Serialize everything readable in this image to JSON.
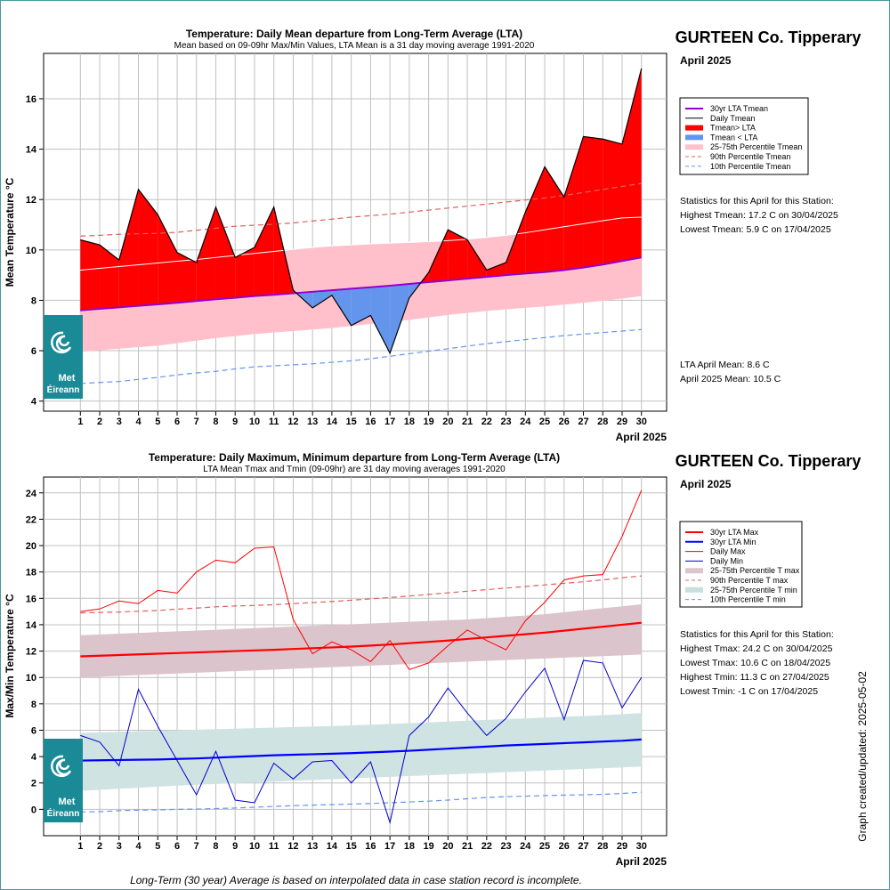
{
  "station": "GURTEEN Co. Tipperary",
  "month_label": "April 2025",
  "updated_text": "Graph created/updated:  2025-05-02",
  "footnote": "Long-Term (30 year) Average is based on interpolated data in case station record is incomplete.",
  "logo_text": [
    "Met",
    "Éireann"
  ],
  "colors": {
    "red_fill": "#ff0000",
    "blue_fill": "#6495ed",
    "pink_band": "#ffc0cb",
    "lta_purple": "#9400d3",
    "max_band": "#dcc4cc",
    "min_band": "#cfe3e2",
    "logo_bg": "#1a8a96"
  },
  "top": {
    "stats_heading": "Statistics for this April for this Station:",
    "stats": [
      "Highest Tmean: 17.2 C on 30/04/2025",
      "Lowest Tmean: 5.9 C on 17/04/2025"
    ],
    "means": [
      "LTA April Mean: 8.6 C",
      "April 2025 Mean: 10.5 C"
    ],
    "legend": [
      {
        "label": "30yr LTA Tmean",
        "style": "line",
        "color": "#9400d3",
        "width": 2,
        "dash": ""
      },
      {
        "label": "Daily Tmean",
        "style": "line",
        "color": "#000000",
        "width": 1,
        "dash": ""
      },
      {
        "label": "Tmean> LTA",
        "style": "line",
        "color": "#ff0000",
        "width": 6,
        "dash": ""
      },
      {
        "label": "Tmean < LTA",
        "style": "line",
        "color": "#6495ed",
        "width": 6,
        "dash": ""
      },
      {
        "label": "25-75th Percentile Tmean",
        "style": "line",
        "color": "#ffc0cb",
        "width": 6,
        "dash": ""
      },
      {
        "label": "90th Percentile Tmean",
        "style": "line",
        "color": "#e06060",
        "width": 1,
        "dash": "4,3"
      },
      {
        "label": "10th Percentile Tmean",
        "style": "line",
        "color": "#6495ed",
        "width": 1,
        "dash": "4,3"
      }
    ]
  },
  "bottom": {
    "stats_heading": "Statistics for this April for this Station:",
    "stats": [
      "Highest Tmax: 24.2 C on 30/04/2025",
      "Lowest Tmax: 10.6 C on 18/04/2025",
      "Highest Tmin: 11.3 C on 27/04/2025",
      "Lowest Tmin: -1 C on 17/04/2025"
    ],
    "legend": [
      {
        "label": "30yr LTA Max",
        "style": "line",
        "color": "#ff0000",
        "width": 2,
        "dash": ""
      },
      {
        "label": "30yr LTA Min",
        "style": "line",
        "color": "#0000ff",
        "width": 2,
        "dash": ""
      },
      {
        "label": "Daily Max",
        "style": "line",
        "color": "#ff0000",
        "width": 1,
        "dash": ""
      },
      {
        "label": "Daily Min",
        "style": "line",
        "color": "#0000cc",
        "width": 1,
        "dash": ""
      },
      {
        "label": "25-75th Percentile T max",
        "style": "line",
        "color": "#dcc4cc",
        "width": 6,
        "dash": ""
      },
      {
        "label": "90th Percentile T max",
        "style": "line",
        "color": "#e06060",
        "width": 1,
        "dash": "4,3"
      },
      {
        "label": "25-75th Percentile T min",
        "style": "line",
        "color": "#c9dedd",
        "width": 6,
        "dash": ""
      },
      {
        "label": "10th Percentile T min",
        "style": "line",
        "color": "#6495ed",
        "width": 1,
        "dash": "4,3"
      }
    ]
  },
  "chart_data": [
    {
      "type": "area",
      "title": "Temperature: Daily Mean departure from Long-Term Average (LTA)",
      "subtitle": "Mean based on 09-09hr Max/Min Values, LTA Mean is a 31 day moving average 1991-2020",
      "ylabel": "Mean Temperature °C",
      "xlabel": "April 2025",
      "xlim": [
        -0.9,
        31.3
      ],
      "ylim": [
        3.6,
        17.8
      ],
      "yticks": [
        4,
        6,
        8,
        10,
        12,
        14,
        16
      ],
      "x": [
        1,
        2,
        3,
        4,
        5,
        6,
        7,
        8,
        9,
        10,
        11,
        12,
        13,
        14,
        15,
        16,
        17,
        18,
        19,
        20,
        21,
        22,
        23,
        24,
        25,
        26,
        27,
        28,
        29,
        30
      ],
      "series": [
        {
          "name": "Daily Tmean",
          "values": [
            10.4,
            10.2,
            9.6,
            12.4,
            11.4,
            9.9,
            9.5,
            11.7,
            9.7,
            10.1,
            11.7,
            8.4,
            7.7,
            8.2,
            7.0,
            7.4,
            5.9,
            8.1,
            9.1,
            10.8,
            10.4,
            9.2,
            9.5,
            11.5,
            13.3,
            12.1,
            14.5,
            14.4,
            14.2,
            17.2
          ]
        },
        {
          "name": "30yr LTA Tmean",
          "values": [
            7.6,
            7.66,
            7.72,
            7.78,
            7.84,
            7.9,
            7.97,
            8.04,
            8.1,
            8.17,
            8.22,
            8.28,
            8.34,
            8.4,
            8.46,
            8.52,
            8.58,
            8.65,
            8.72,
            8.79,
            8.86,
            8.93,
            9.0,
            9.06,
            9.12,
            9.2,
            9.3,
            9.42,
            9.56,
            9.7
          ]
        },
        {
          "name": "25th Percentile Tmean",
          "values": [
            5.95,
            6.02,
            6.08,
            6.14,
            6.2,
            6.3,
            6.4,
            6.5,
            6.58,
            6.66,
            6.72,
            6.78,
            6.84,
            6.9,
            6.98,
            7.06,
            7.14,
            7.22,
            7.32,
            7.42,
            7.5,
            7.58,
            7.64,
            7.7,
            7.76,
            7.83,
            7.9,
            7.98,
            8.07,
            8.17
          ]
        },
        {
          "name": "75th Percentile Tmean",
          "values": [
            9.2,
            9.27,
            9.34,
            9.41,
            9.48,
            9.55,
            9.62,
            9.7,
            9.78,
            9.86,
            9.94,
            10.02,
            10.1,
            10.16,
            10.2,
            10.24,
            10.27,
            10.3,
            10.33,
            10.37,
            10.42,
            10.5,
            10.58,
            10.68,
            10.8,
            10.92,
            11.04,
            11.16,
            11.27,
            11.3
          ]
        },
        {
          "name": "90th Percentile Tmean",
          "values": [
            10.55,
            10.58,
            10.62,
            10.64,
            10.66,
            10.7,
            10.78,
            10.86,
            10.94,
            10.98,
            11.02,
            11.07,
            11.15,
            11.22,
            11.3,
            11.36,
            11.42,
            11.5,
            11.58,
            11.66,
            11.74,
            11.82,
            11.9,
            11.98,
            12.06,
            12.16,
            12.28,
            12.4,
            12.52,
            12.64
          ]
        },
        {
          "name": "10th Percentile Tmean",
          "values": [
            4.7,
            4.74,
            4.78,
            4.86,
            4.94,
            5.04,
            5.12,
            5.18,
            5.28,
            5.36,
            5.4,
            5.44,
            5.48,
            5.54,
            5.6,
            5.68,
            5.78,
            5.88,
            5.98,
            6.08,
            6.18,
            6.28,
            6.36,
            6.44,
            6.52,
            6.6,
            6.66,
            6.72,
            6.78,
            6.84
          ]
        }
      ]
    },
    {
      "type": "line",
      "title": "Temperature: Daily Maximum, Minimum departure from Long-Term Average (LTA)",
      "subtitle": "LTA Mean Tmax and Tmin (09-09hr) are 31 day moving averages 1991-2020",
      "ylabel": "Max/Min Temperature °C",
      "xlabel": "April 2025",
      "xlim": [
        -0.9,
        31.3
      ],
      "ylim": [
        -2.0,
        25.2
      ],
      "yticks": [
        0,
        2,
        4,
        6,
        8,
        10,
        12,
        14,
        16,
        18,
        20,
        22,
        24
      ],
      "x": [
        1,
        2,
        3,
        4,
        5,
        6,
        7,
        8,
        9,
        10,
        11,
        12,
        13,
        14,
        15,
        16,
        17,
        18,
        19,
        20,
        21,
        22,
        23,
        24,
        25,
        26,
        27,
        28,
        29,
        30
      ],
      "series": [
        {
          "name": "Daily Max",
          "values": [
            15.0,
            15.2,
            15.8,
            15.6,
            16.6,
            16.4,
            18.0,
            18.9,
            18.7,
            19.8,
            19.9,
            14.4,
            11.8,
            12.7,
            12.1,
            11.2,
            12.8,
            10.6,
            11.1,
            12.4,
            13.6,
            12.8,
            12.1,
            14.3,
            15.7,
            17.4,
            17.7,
            17.8,
            20.7,
            24.2
          ]
        },
        {
          "name": "Daily Min",
          "values": [
            5.6,
            5.1,
            3.3,
            9.1,
            6.3,
            3.7,
            1.1,
            4.4,
            0.7,
            0.5,
            3.5,
            2.3,
            3.6,
            3.7,
            2.0,
            3.6,
            -1.0,
            5.6,
            7.0,
            9.2,
            7.3,
            5.6,
            6.9,
            8.9,
            10.7,
            6.8,
            11.3,
            11.1,
            7.7,
            10.0
          ]
        },
        {
          "name": "30yr LTA Max",
          "values": [
            11.6,
            11.65,
            11.7,
            11.75,
            11.8,
            11.85,
            11.9,
            11.95,
            12.0,
            12.05,
            12.1,
            12.16,
            12.22,
            12.28,
            12.34,
            12.42,
            12.5,
            12.6,
            12.7,
            12.8,
            12.92,
            13.04,
            13.16,
            13.28,
            13.4,
            13.55,
            13.7,
            13.85,
            14.0,
            14.15
          ]
        },
        {
          "name": "30yr LTA Min",
          "values": [
            3.7,
            3.72,
            3.74,
            3.76,
            3.78,
            3.82,
            3.86,
            3.92,
            3.98,
            4.04,
            4.1,
            4.14,
            4.18,
            4.22,
            4.26,
            4.32,
            4.38,
            4.44,
            4.52,
            4.6,
            4.68,
            4.76,
            4.84,
            4.9,
            4.96,
            5.02,
            5.08,
            5.14,
            5.2,
            5.3
          ]
        },
        {
          "name": "25th Percentile T max",
          "values": [
            10.0,
            10.06,
            10.12,
            10.18,
            10.24,
            10.3,
            10.36,
            10.42,
            10.48,
            10.54,
            10.6,
            10.66,
            10.72,
            10.78,
            10.84,
            10.9,
            10.96,
            11.02,
            11.08,
            11.14,
            11.2,
            11.26,
            11.32,
            11.38,
            11.44,
            11.5,
            11.56,
            11.62,
            11.68,
            11.74
          ]
        },
        {
          "name": "75th Percentile T max",
          "values": [
            13.2,
            13.26,
            13.32,
            13.38,
            13.44,
            13.5,
            13.56,
            13.62,
            13.68,
            13.74,
            13.8,
            13.86,
            13.92,
            13.98,
            14.04,
            14.1,
            14.16,
            14.22,
            14.28,
            14.34,
            14.4,
            14.5,
            14.6,
            14.7,
            14.8,
            14.95,
            15.1,
            15.25,
            15.4,
            15.55
          ]
        },
        {
          "name": "90th Percentile T max",
          "values": [
            14.9,
            14.93,
            14.96,
            15.02,
            15.08,
            15.18,
            15.26,
            15.36,
            15.42,
            15.46,
            15.52,
            15.6,
            15.68,
            15.76,
            15.86,
            15.96,
            16.06,
            16.18,
            16.3,
            16.42,
            16.54,
            16.66,
            16.78,
            16.9,
            17.02,
            17.14,
            17.26,
            17.4,
            17.56,
            17.7
          ]
        },
        {
          "name": "25th Percentile T min",
          "values": [
            1.4,
            1.48,
            1.56,
            1.64,
            1.72,
            1.8,
            1.86,
            1.92,
            1.98,
            2.04,
            2.1,
            2.16,
            2.22,
            2.28,
            2.34,
            2.4,
            2.46,
            2.52,
            2.58,
            2.64,
            2.7,
            2.76,
            2.82,
            2.88,
            2.94,
            3.0,
            3.06,
            3.12,
            3.18,
            3.25
          ]
        },
        {
          "name": "75th Percentile T min",
          "values": [
            5.8,
            5.84,
            5.88,
            5.92,
            5.96,
            6.0,
            6.04,
            6.08,
            6.12,
            6.16,
            6.2,
            6.24,
            6.28,
            6.32,
            6.36,
            6.42,
            6.48,
            6.54,
            6.6,
            6.66,
            6.72,
            6.78,
            6.84,
            6.9,
            6.96,
            7.02,
            7.08,
            7.14,
            7.22,
            7.3
          ]
        },
        {
          "name": "10th Percentile T min",
          "values": [
            -0.2,
            -0.18,
            -0.1,
            -0.06,
            -0.04,
            0.0,
            0.02,
            0.06,
            0.1,
            0.16,
            0.22,
            0.28,
            0.32,
            0.36,
            0.4,
            0.44,
            0.5,
            0.56,
            0.62,
            0.7,
            0.8,
            0.9,
            0.96,
            1.0,
            1.04,
            1.08,
            1.1,
            1.14,
            1.2,
            1.3
          ]
        }
      ]
    }
  ]
}
